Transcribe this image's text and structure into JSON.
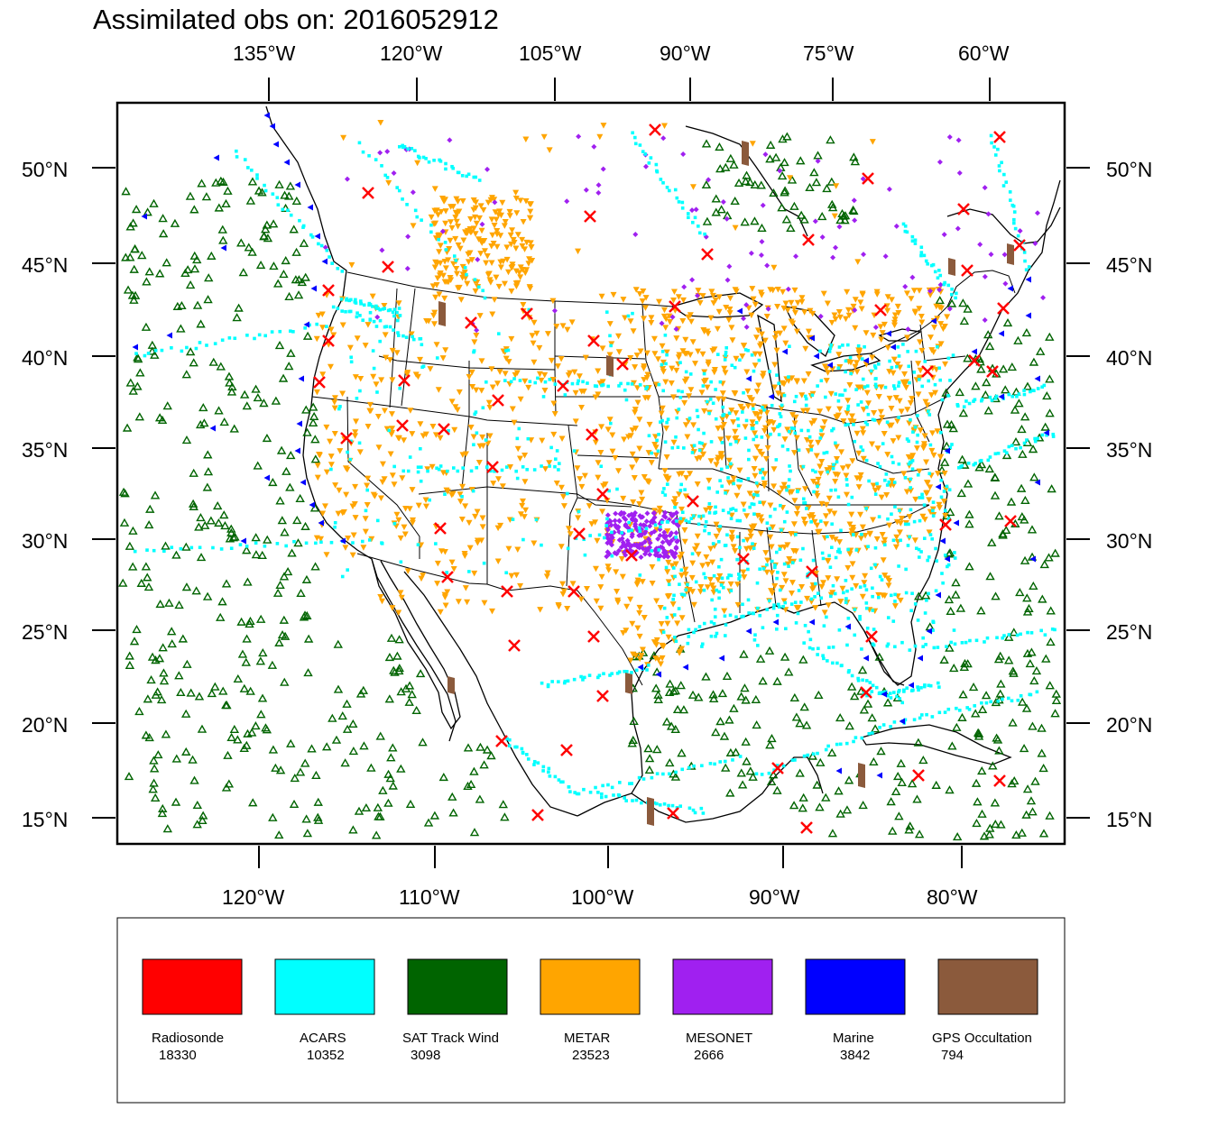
{
  "title": "Assimilated obs on: 2016052912",
  "axes": {
    "top_ticks": [
      "135°W",
      "120°W",
      "105°W",
      "90°W",
      "75°W",
      "60°W"
    ],
    "bottom_ticks": [
      "120°W",
      "110°W",
      "100°W",
      "90°W",
      "80°W"
    ],
    "lat_ticks": [
      "50°N",
      "45°N",
      "40°N",
      "35°N",
      "30°N",
      "25°N",
      "20°N",
      "15°N"
    ]
  },
  "colors": {
    "radiosonde": "#ff0000",
    "acars": "#00ffff",
    "sat_track_wind": "#006400",
    "metar": "#ffa500",
    "mesonet": "#a020f0",
    "marine": "#0000ff",
    "gps": "#8b5a3c"
  },
  "legend": [
    {
      "name": "Radiosonde",
      "count": "18330",
      "color": "#ff0000"
    },
    {
      "name": "ACARS",
      "count": "10352",
      "color": "#00ffff"
    },
    {
      "name": "SAT Track Wind",
      "count": "3098",
      "color": "#006400"
    },
    {
      "name": "METAR",
      "count": "23523",
      "color": "#ffa500"
    },
    {
      "name": "MESONET",
      "count": "2666",
      "color": "#a020f0"
    },
    {
      "name": "Marine",
      "count": "3842",
      "color": "#0000ff"
    },
    {
      "name": "GPS Occultation",
      "count": "794",
      "color": "#8b5a3c"
    }
  ]
}
